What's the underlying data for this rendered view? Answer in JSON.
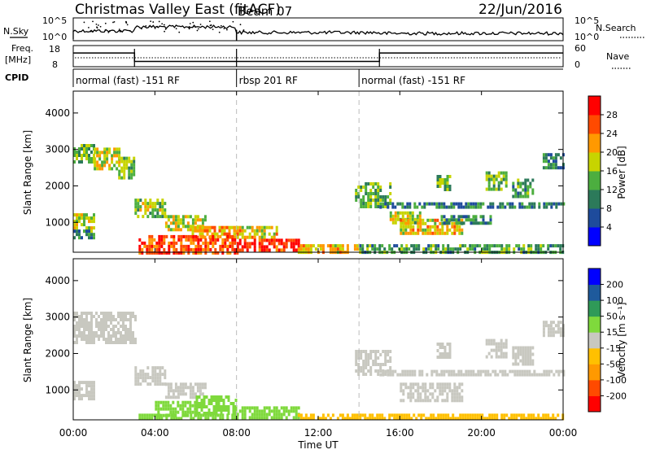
{
  "header": {
    "title": "Christmas Valley East (fitACF)",
    "beam": "Beam 07",
    "date": "22/Jun/2016"
  },
  "top_panels": {
    "nsky_label": "N.Sky",
    "nsky_ticks": [
      "10^5",
      "10^0"
    ],
    "nsearch_label": "N.Search",
    "nsearch_ticks": [
      "10^5",
      "10^0"
    ],
    "freq_label_1": "Freq.",
    "freq_label_2": "[MHz]",
    "freq_ticks": [
      "18",
      "8"
    ],
    "nave_label": "Nave",
    "nave_ticks": [
      "60",
      "0"
    ],
    "cpid_label": "CPID",
    "cpid_segments": [
      {
        "label": "normal (fast) -151 RF",
        "start_hour": 0,
        "end_hour": 8
      },
      {
        "label": "rbsp 201 RF",
        "start_hour": 8,
        "end_hour": 14
      },
      {
        "label": "normal (fast) -151 RF",
        "start_hour": 14,
        "end_hour": 24
      }
    ],
    "frequency_mhz": [
      {
        "start_hour": 0,
        "end_hour": 3,
        "value": 14.5
      },
      {
        "start_hour": 3,
        "end_hour": 15,
        "value": 10.5
      },
      {
        "start_hour": 15,
        "end_hour": 24,
        "value": 14.5
      }
    ],
    "frequency_break_hours": [
      3,
      8,
      15
    ]
  },
  "chart_data": [
    {
      "type": "heatmap",
      "name": "power",
      "ylabel": "Slant Range [km]",
      "y_ticks": [
        1000,
        2000,
        3000,
        4000
      ],
      "ylim": [
        180,
        4600
      ],
      "xlim_hours": [
        0,
        24
      ],
      "colorbar_label": "Power [dB]",
      "colorbar_ticks": [
        "28",
        "24",
        "20",
        "16",
        "12",
        "8",
        "4"
      ],
      "colorbar_range": [
        0,
        30
      ],
      "colors": [
        "#0000ff",
        "#1e4b9c",
        "#2c7a5a",
        "#4cae3f",
        "#c7d400",
        "#ff9900",
        "#ff4a00",
        "#ff0000"
      ],
      "regions": [
        {
          "t": [
            0.0,
            1.0
          ],
          "r": [
            2700,
            3150
          ],
          "v": 14
        },
        {
          "t": [
            1.0,
            2.2
          ],
          "r": [
            2500,
            3050
          ],
          "v": 17
        },
        {
          "t": [
            2.2,
            3.0
          ],
          "r": [
            2250,
            2800
          ],
          "v": 15
        },
        {
          "t": [
            0.0,
            1.0
          ],
          "r": [
            750,
            1250
          ],
          "v": 18
        },
        {
          "t": [
            0.0,
            1.0
          ],
          "r": [
            600,
            800
          ],
          "v": 10
        },
        {
          "t": [
            3.0,
            4.5
          ],
          "r": [
            1150,
            1650
          ],
          "v": 16
        },
        {
          "t": [
            4.5,
            6.5
          ],
          "r": [
            800,
            1200
          ],
          "v": 18
        },
        {
          "t": [
            5.8,
            8.0
          ],
          "r": [
            550,
            900
          ],
          "v": 22
        },
        {
          "t": [
            3.2,
            8.0
          ],
          "r": [
            200,
            650
          ],
          "v": 26
        },
        {
          "t": [
            8.0,
            10.0
          ],
          "r": [
            600,
            900
          ],
          "v": 20
        },
        {
          "t": [
            8.0,
            11.0
          ],
          "r": [
            200,
            550
          ],
          "v": 28
        },
        {
          "t": [
            11.0,
            14.0
          ],
          "r": [
            200,
            400
          ],
          "v": 20
        },
        {
          "t": [
            14.0,
            24.0
          ],
          "r": [
            200,
            400
          ],
          "v": 12
        },
        {
          "t": [
            13.8,
            15.5
          ],
          "r": [
            1400,
            2100
          ],
          "v": 14
        },
        {
          "t": [
            15.5,
            17.0
          ],
          "r": [
            1000,
            1300
          ],
          "v": 16
        },
        {
          "t": [
            16.0,
            19.0
          ],
          "r": [
            700,
            1100
          ],
          "v": 20
        },
        {
          "t": [
            15.0,
            24.0
          ],
          "r": [
            1450,
            1550
          ],
          "v": 10
        },
        {
          "t": [
            18.0,
            20.5
          ],
          "r": [
            1000,
            1200
          ],
          "v": 11
        },
        {
          "t": [
            17.8,
            18.4
          ],
          "r": [
            1900,
            2300
          ],
          "v": 14
        },
        {
          "t": [
            20.2,
            21.2
          ],
          "r": [
            1900,
            2400
          ],
          "v": 15
        },
        {
          "t": [
            21.5,
            22.5
          ],
          "r": [
            1700,
            2200
          ],
          "v": 12
        },
        {
          "t": [
            23.0,
            24.0
          ],
          "r": [
            2500,
            2900
          ],
          "v": 10
        }
      ]
    },
    {
      "type": "heatmap",
      "name": "velocity",
      "ylabel": "Slant Range [km]",
      "y_ticks": [
        1000,
        2000,
        3000,
        4000
      ],
      "ylim": [
        180,
        4600
      ],
      "xlim_hours": [
        0,
        24
      ],
      "colorbar_label": "Velocity [m s⁻¹]",
      "colorbar_ticks": [
        "200",
        "100",
        "50",
        "15",
        "-15",
        "-50",
        "-100",
        "-200"
      ],
      "colorbar_range": [
        -250,
        250
      ],
      "colors": [
        "#ff0000",
        "#ff4a00",
        "#ff9900",
        "#ffc000",
        "#c8c8c0",
        "#7fd93c",
        "#2f9a58",
        "#1e5a9c",
        "#0000ff"
      ],
      "regions": [
        {
          "t": [
            0.0,
            3.0
          ],
          "r": [
            2300,
            3150
          ],
          "v": 0
        },
        {
          "t": [
            0.0,
            1.0
          ],
          "r": [
            750,
            1250
          ],
          "v": 0
        },
        {
          "t": [
            3.0,
            4.5
          ],
          "r": [
            1150,
            1650
          ],
          "v": 0
        },
        {
          "t": [
            4.5,
            6.5
          ],
          "r": [
            800,
            1200
          ],
          "v": 0
        },
        {
          "t": [
            4.0,
            6.0
          ],
          "r": [
            300,
            700
          ],
          "v": 35
        },
        {
          "t": [
            6.0,
            8.0
          ],
          "r": [
            350,
            850
          ],
          "v": 30
        },
        {
          "t": [
            8.0,
            11.0
          ],
          "r": [
            250,
            550
          ],
          "v": 40
        },
        {
          "t": [
            3.2,
            8.0
          ],
          "r": [
            200,
            350
          ],
          "v": 45
        },
        {
          "t": [
            11.0,
            14.0
          ],
          "r": [
            200,
            350
          ],
          "v": -30
        },
        {
          "t": [
            14.0,
            24.0
          ],
          "r": [
            200,
            350
          ],
          "v": -40
        },
        {
          "t": [
            13.8,
            15.5
          ],
          "r": [
            1400,
            2100
          ],
          "v": 0
        },
        {
          "t": [
            16.0,
            19.0
          ],
          "r": [
            700,
            1200
          ],
          "v": 0
        },
        {
          "t": [
            15.0,
            24.0
          ],
          "r": [
            1450,
            1550
          ],
          "v": 0
        },
        {
          "t": [
            17.8,
            18.4
          ],
          "r": [
            1900,
            2300
          ],
          "v": 0
        },
        {
          "t": [
            20.2,
            21.2
          ],
          "r": [
            1900,
            2400
          ],
          "v": 0
        },
        {
          "t": [
            21.5,
            22.5
          ],
          "r": [
            1700,
            2200
          ],
          "v": 0
        },
        {
          "t": [
            23.0,
            24.0
          ],
          "r": [
            2500,
            2900
          ],
          "v": 0
        }
      ]
    }
  ],
  "x_axis": {
    "ticks": [
      "00:00",
      "04:00",
      "08:00",
      "12:00",
      "16:00",
      "20:00",
      "00:00"
    ],
    "xlabel": "Time UT",
    "tick_hours": [
      0,
      4,
      8,
      12,
      16,
      20,
      24
    ],
    "dashed_hours": [
      8,
      14
    ]
  }
}
